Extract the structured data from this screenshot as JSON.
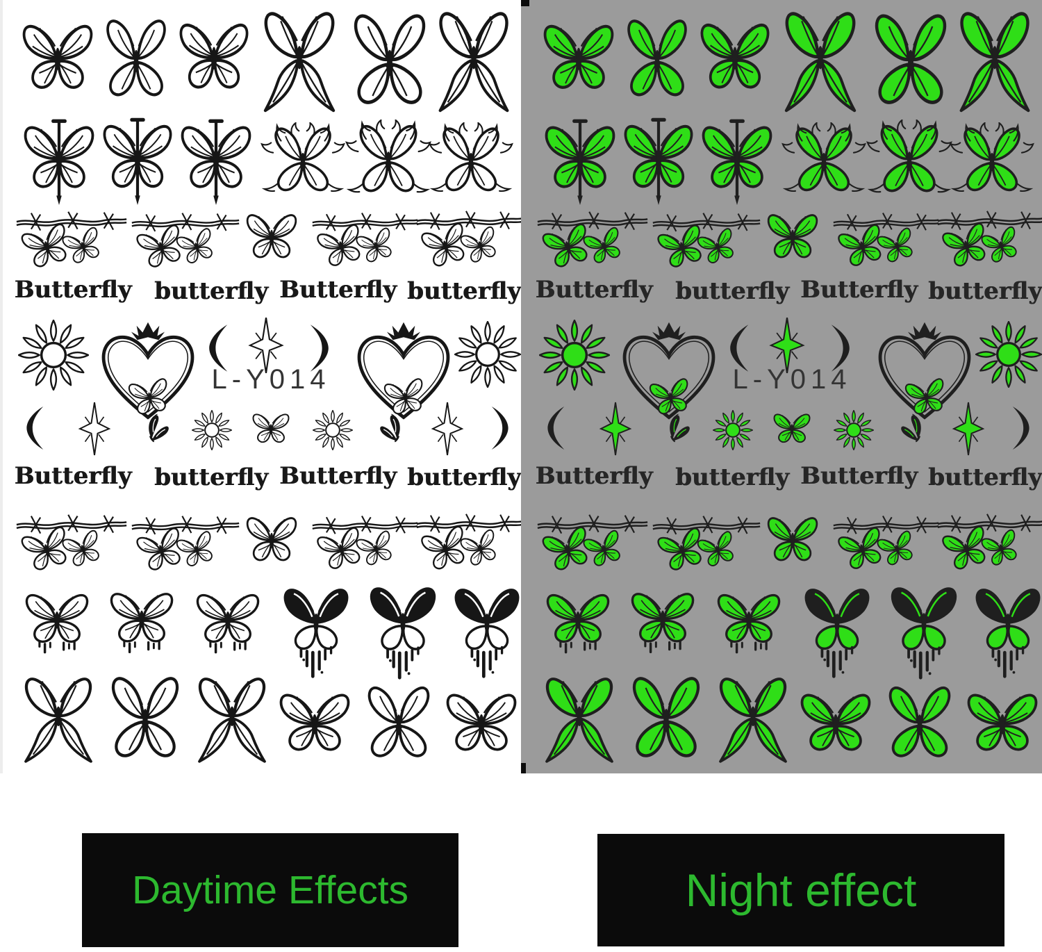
{
  "product": {
    "code": "L-Y014"
  },
  "sheet": {
    "code": "L-Y014",
    "words": [
      "Butterfly",
      "butterfly",
      "Butterfly",
      "butterfly"
    ]
  },
  "captions": {
    "daytime": "Daytime Effects",
    "night": "Night effect"
  },
  "colors": {
    "glow_green": "#2FDE17",
    "caption_green": "#2DB92F",
    "night_bg": "#9B9B9B",
    "label_bg": "#0B0B0B",
    "ink": "#161616",
    "night_ink": "#1F1F1F",
    "code_gray": "#343434",
    "sheet_white": "#FFFFFF"
  }
}
